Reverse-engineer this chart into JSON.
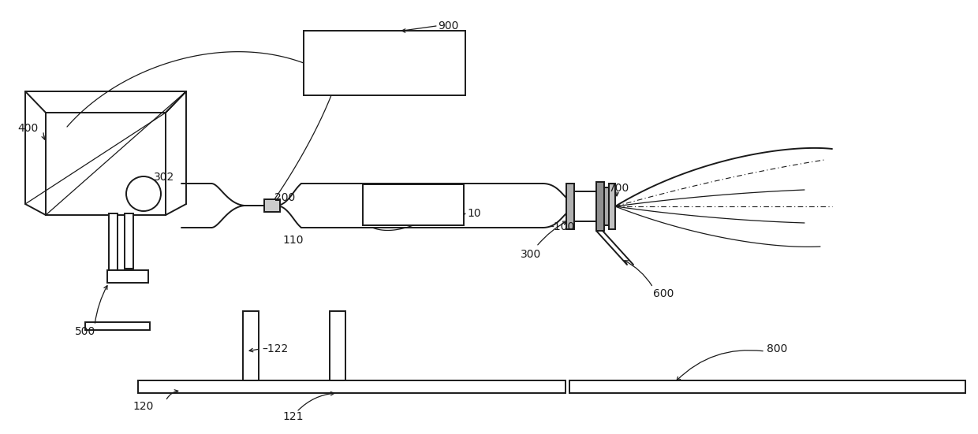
{
  "bg_color": "#ffffff",
  "line_color": "#1a1a1a",
  "fig_width": 12.4,
  "fig_height": 5.51,
  "font_size": 10
}
